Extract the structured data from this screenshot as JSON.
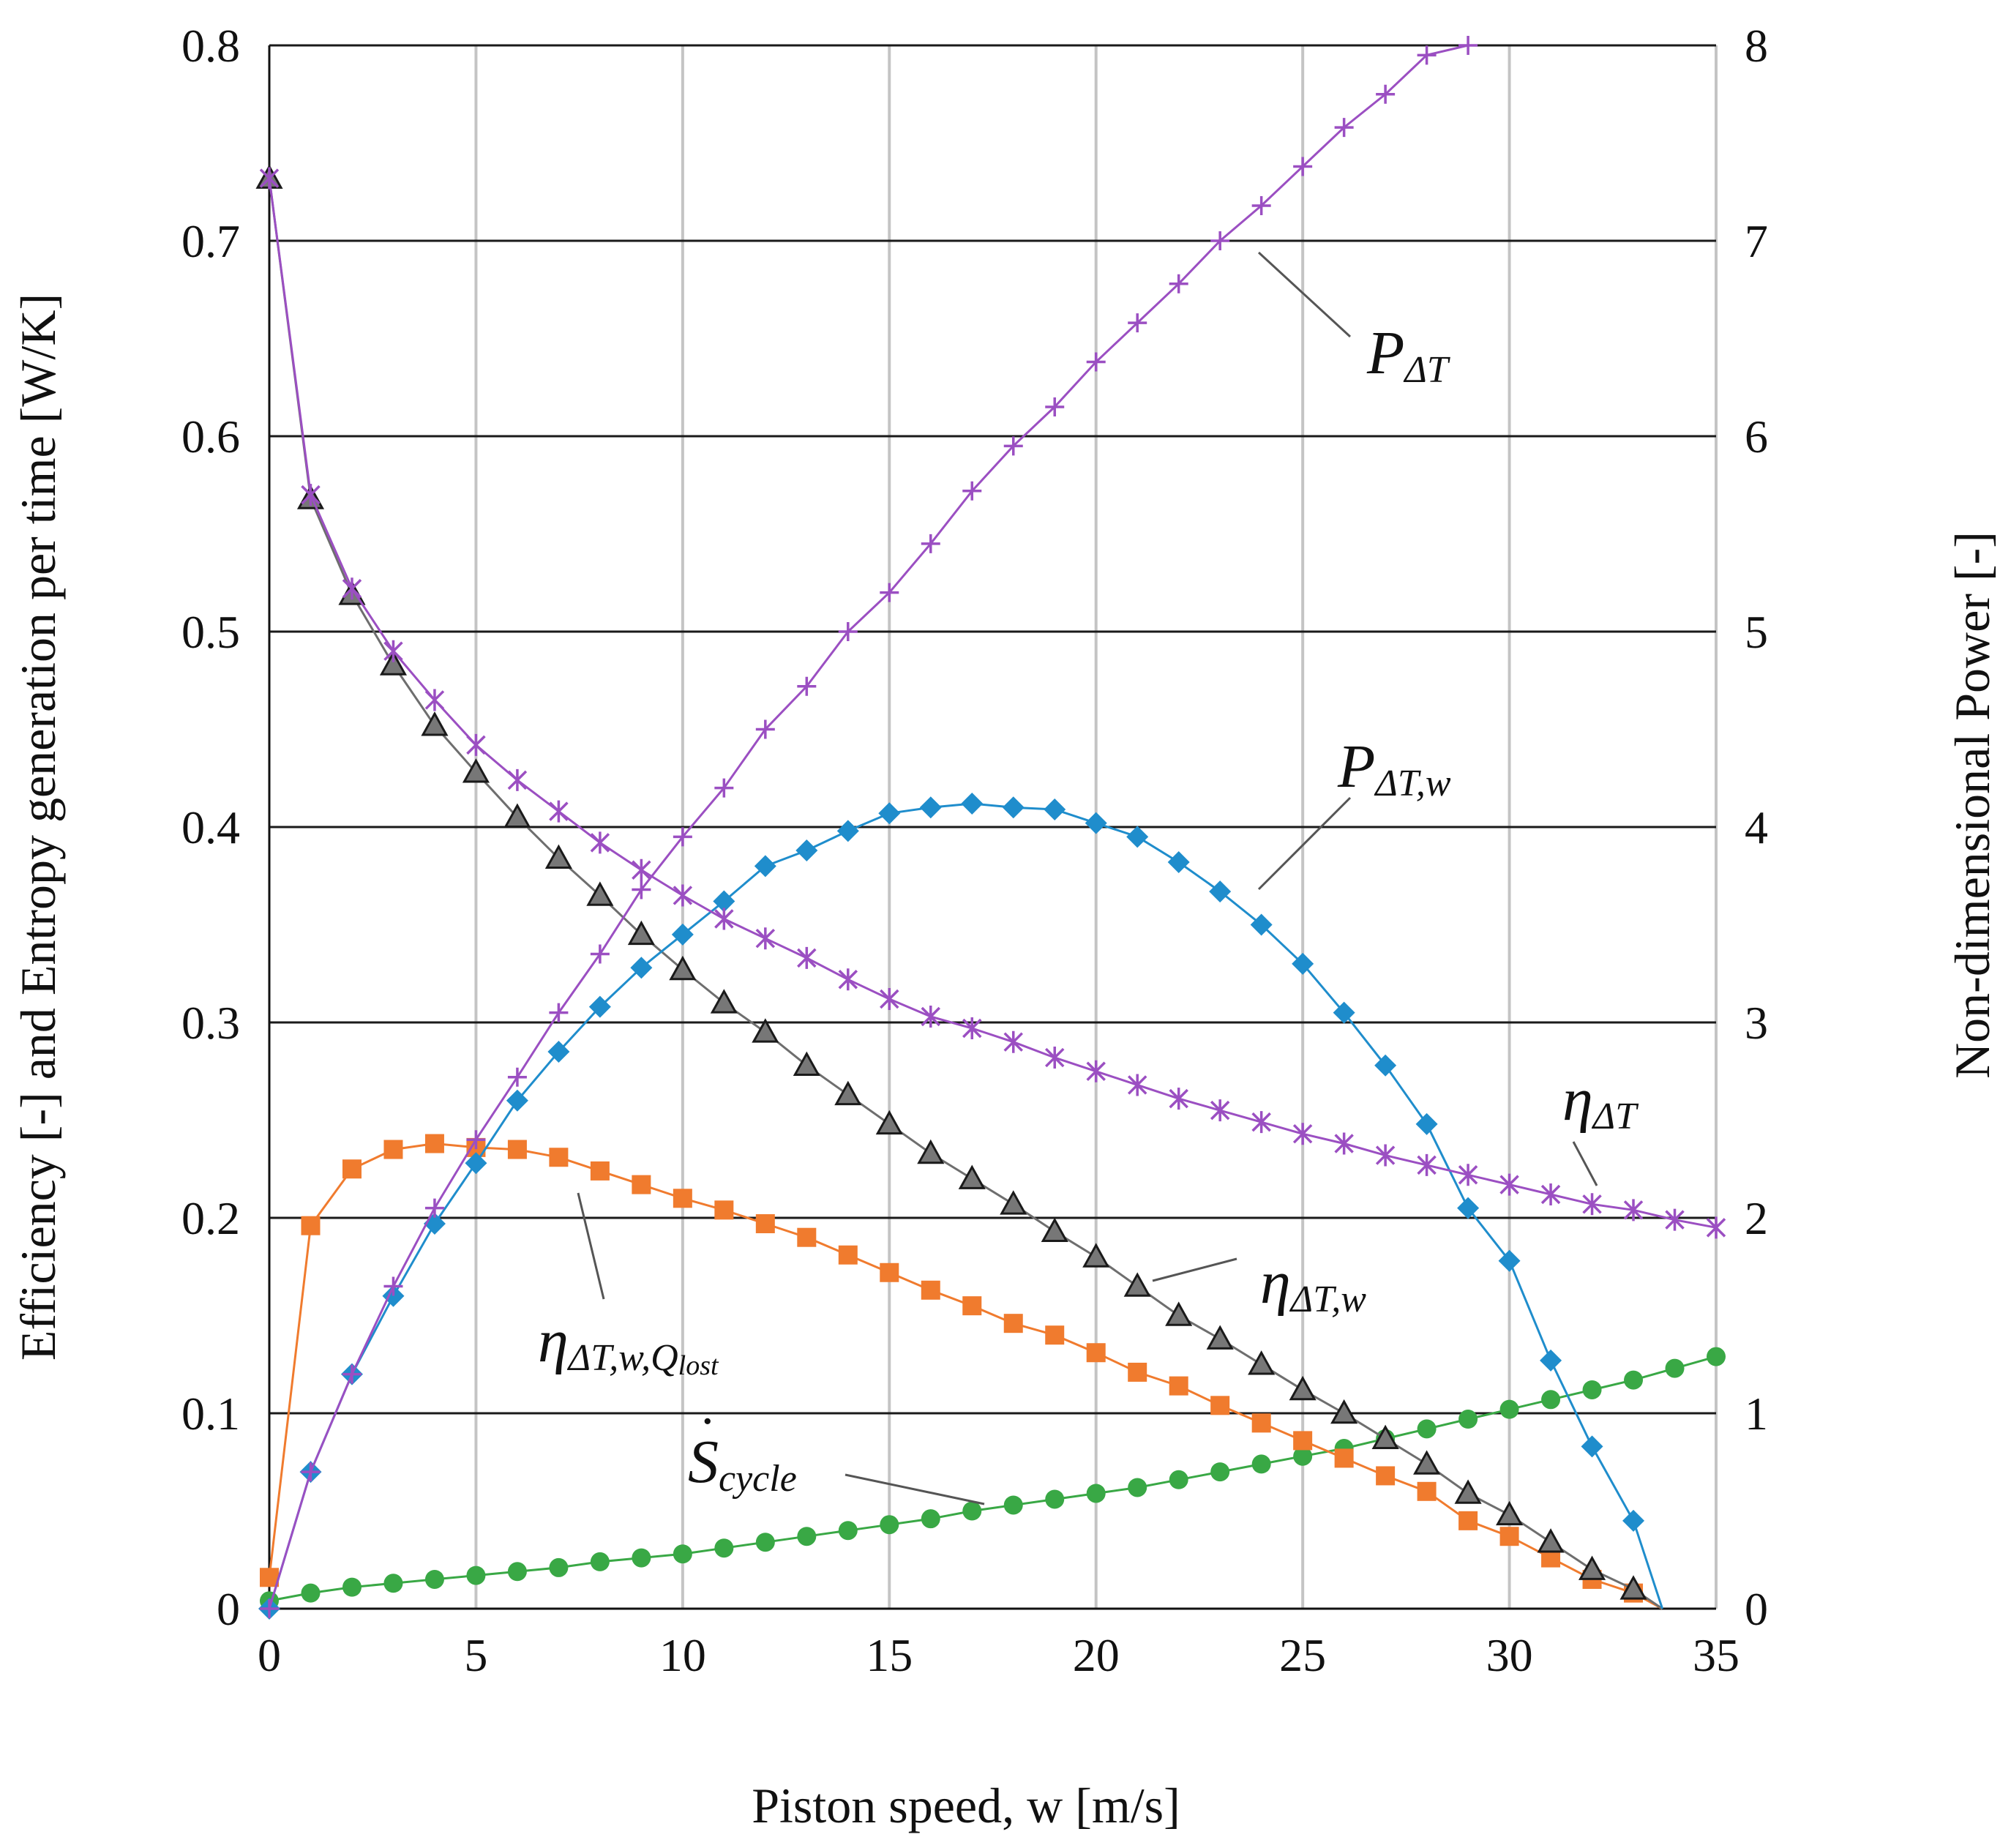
{
  "chart_data": {
    "type": "line",
    "xlabel": "Piston speed, w  [m/s]",
    "ylabel_left": "Efficiency [-] and Entropy generation per time [W/K]",
    "ylabel_right": "Non-dimensional Power [-]",
    "xlim": [
      0,
      35
    ],
    "ylim_left": [
      0,
      0.8
    ],
    "ylim_right": [
      0,
      8
    ],
    "x_ticks": [
      0,
      5,
      10,
      15,
      20,
      25,
      30,
      35
    ],
    "x_tick_labels": [
      "0",
      "5",
      "10",
      "15",
      "20",
      "25",
      "30",
      "35"
    ],
    "y_left_ticks": [
      0,
      0.1,
      0.2,
      0.3,
      0.4,
      0.5,
      0.6,
      0.7,
      0.8
    ],
    "y_left_tick_labels": [
      "0",
      "0.1",
      "0.2",
      "0.3",
      "0.4",
      "0.5",
      "0.6",
      "0.7",
      "0.8"
    ],
    "y_right_ticks": [
      0,
      1,
      2,
      3,
      4,
      5,
      6,
      7,
      8
    ],
    "y_right_tick_labels": [
      "0",
      "1",
      "2",
      "3",
      "4",
      "5",
      "6",
      "7",
      "8"
    ],
    "grid": true,
    "series": [
      {
        "name": "P_ΔT",
        "label_main": "P",
        "label_sub": "ΔT",
        "axis": "right",
        "marker": "plus",
        "color": "#9b4fc2",
        "x": [
          0,
          1,
          2,
          3,
          4,
          5,
          6,
          7,
          8,
          9,
          10,
          11,
          12,
          13,
          14,
          15,
          16,
          17,
          18,
          19,
          20,
          21,
          22,
          23,
          24,
          25,
          26,
          27,
          28,
          29
        ],
        "values": [
          0,
          0.7,
          1.2,
          1.65,
          2.05,
          2.4,
          2.72,
          3.05,
          3.35,
          3.68,
          3.95,
          4.2,
          4.5,
          4.72,
          5.0,
          5.2,
          5.45,
          5.72,
          5.95,
          6.15,
          6.38,
          6.58,
          6.78,
          7.0,
          7.18,
          7.38,
          7.58,
          7.75,
          7.95,
          8.0
        ]
      },
      {
        "name": "P_ΔT,w",
        "label_main": "P",
        "label_sub": "ΔT,w",
        "axis": "right",
        "marker": "diamond",
        "color": "#1f8dcc",
        "x": [
          0,
          1,
          2,
          3,
          4,
          5,
          6,
          7,
          8,
          9,
          10,
          11,
          12,
          13,
          14,
          15,
          16,
          17,
          18,
          19,
          20,
          21,
          22,
          23,
          24,
          25,
          26,
          27,
          28,
          29,
          30,
          31,
          32,
          33,
          33.7
        ],
        "values": [
          0,
          0.7,
          1.2,
          1.6,
          1.97,
          2.28,
          2.6,
          2.85,
          3.08,
          3.28,
          3.45,
          3.62,
          3.8,
          3.88,
          3.98,
          4.07,
          4.1,
          4.12,
          4.1,
          4.09,
          4.02,
          3.95,
          3.82,
          3.67,
          3.5,
          3.3,
          3.05,
          2.78,
          2.48,
          2.05,
          1.78,
          1.27,
          0.83,
          0.45,
          0
        ]
      },
      {
        "name": "η_ΔT",
        "label_main": "η",
        "label_sub": "ΔT",
        "axis": "left",
        "marker": "star",
        "color": "#9b4fc2",
        "x": [
          0,
          1,
          2,
          3,
          4,
          5,
          6,
          7,
          8,
          9,
          10,
          11,
          12,
          13,
          14,
          15,
          16,
          17,
          18,
          19,
          20,
          21,
          22,
          23,
          24,
          25,
          26,
          27,
          28,
          29,
          30,
          31,
          32,
          33,
          34,
          35
        ],
        "values": [
          0.732,
          0.57,
          0.522,
          0.49,
          0.465,
          0.442,
          0.424,
          0.408,
          0.392,
          0.378,
          0.365,
          0.353,
          0.343,
          0.333,
          0.322,
          0.312,
          0.303,
          0.297,
          0.29,
          0.282,
          0.275,
          0.268,
          0.261,
          0.255,
          0.249,
          0.243,
          0.238,
          0.232,
          0.227,
          0.222,
          0.217,
          0.212,
          0.207,
          0.204,
          0.199,
          0.195
        ]
      },
      {
        "name": "η_ΔT,w",
        "label_main": "η",
        "label_sub": "ΔT,w",
        "axis": "left",
        "marker": "triangle",
        "color": "#6e6e6e",
        "x": [
          0,
          1,
          2,
          3,
          4,
          5,
          6,
          7,
          8,
          9,
          10,
          11,
          12,
          13,
          14,
          15,
          16,
          17,
          18,
          19,
          20,
          21,
          22,
          23,
          24,
          25,
          26,
          27,
          28,
          29,
          30,
          31,
          32,
          33,
          33.7
        ],
        "values": [
          0.732,
          0.568,
          0.519,
          0.483,
          0.452,
          0.428,
          0.405,
          0.384,
          0.365,
          0.345,
          0.327,
          0.31,
          0.295,
          0.278,
          0.263,
          0.248,
          0.233,
          0.22,
          0.207,
          0.193,
          0.18,
          0.165,
          0.15,
          0.138,
          0.125,
          0.112,
          0.1,
          0.087,
          0.074,
          0.059,
          0.048,
          0.034,
          0.02,
          0.01,
          0
        ]
      },
      {
        "name": "η_ΔT,w,Qlost",
        "label_main": "η",
        "label_sub": "ΔT,w,Q",
        "label_subsub": "lost",
        "axis": "left",
        "marker": "square",
        "color": "#f07b2e",
        "x": [
          0,
          1,
          2,
          3,
          4,
          5,
          6,
          7,
          8,
          9,
          10,
          11,
          12,
          13,
          14,
          15,
          16,
          17,
          18,
          19,
          20,
          21,
          22,
          23,
          24,
          25,
          26,
          27,
          28,
          29,
          30,
          31,
          32,
          33,
          33.7
        ],
        "values": [
          0.016,
          0.196,
          0.225,
          0.235,
          0.238,
          0.236,
          0.235,
          0.231,
          0.224,
          0.217,
          0.21,
          0.204,
          0.197,
          0.19,
          0.181,
          0.172,
          0.163,
          0.155,
          0.146,
          0.14,
          0.131,
          0.121,
          0.114,
          0.104,
          0.095,
          0.086,
          0.077,
          0.068,
          0.06,
          0.045,
          0.037,
          0.026,
          0.015,
          0.008,
          0
        ]
      },
      {
        "name": "S_cycle",
        "label_main": "S",
        "label_sub": "cycle",
        "axis": "left",
        "marker": "circle",
        "color": "#39a845",
        "x": [
          0,
          1,
          2,
          3,
          4,
          5,
          6,
          7,
          8,
          9,
          10,
          11,
          12,
          13,
          14,
          15,
          16,
          17,
          18,
          19,
          20,
          21,
          22,
          23,
          24,
          25,
          26,
          27,
          28,
          29,
          30,
          31,
          32,
          33,
          34,
          35
        ],
        "values": [
          0.004,
          0.008,
          0.011,
          0.013,
          0.015,
          0.017,
          0.019,
          0.021,
          0.024,
          0.026,
          0.028,
          0.031,
          0.034,
          0.037,
          0.04,
          0.043,
          0.046,
          0.05,
          0.053,
          0.056,
          0.059,
          0.062,
          0.066,
          0.07,
          0.074,
          0.078,
          0.082,
          0.087,
          0.092,
          0.097,
          0.102,
          0.107,
          0.112,
          0.117,
          0.123,
          0.129
        ]
      }
    ]
  }
}
